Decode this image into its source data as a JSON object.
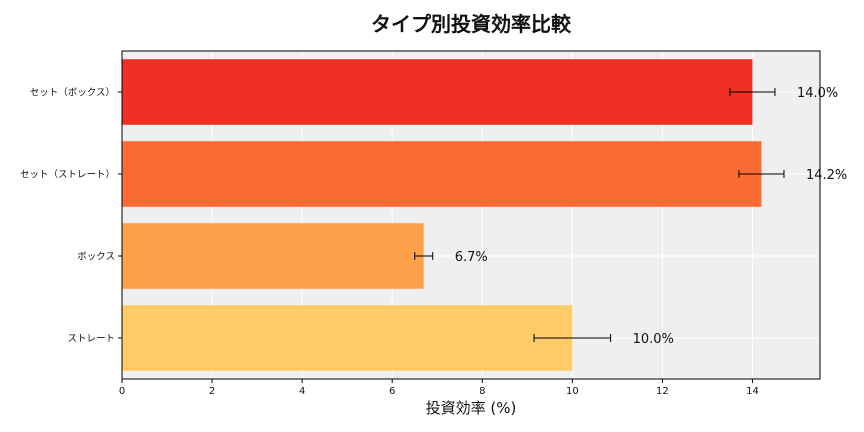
{
  "chart_data": {
    "type": "bar",
    "orientation": "horizontal",
    "title": "タイプ別投資効率比較",
    "xlabel": "投資効率 (%)",
    "ylabel": "",
    "xlim": [
      0,
      15.5
    ],
    "xticks": [
      0,
      2,
      4,
      6,
      8,
      10,
      12,
      14
    ],
    "grid": true,
    "categories": [
      "セット（ボックス）",
      "セット（ストレート）",
      "ボックス",
      "ストレート"
    ],
    "values": [
      14.0,
      14.2,
      6.7,
      10.0
    ],
    "errors": [
      0.5,
      0.5,
      0.2,
      0.85
    ],
    "value_labels": [
      "14.0%",
      "14.2%",
      "6.7%",
      "10.0%"
    ],
    "colors": [
      "#ee3124",
      "#fc6b33",
      "#fda14b",
      "#fecb68"
    ],
    "background": "#efefef"
  }
}
